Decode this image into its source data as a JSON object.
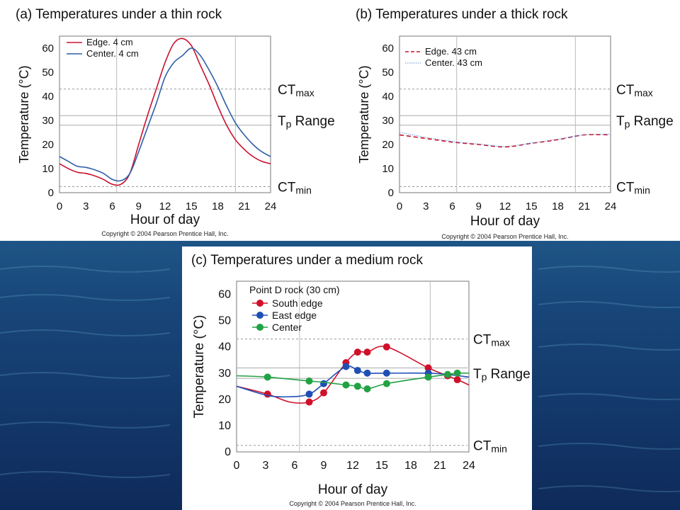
{
  "chart_data": [
    {
      "type": "line",
      "title": "(a)   Temperatures under a thin rock",
      "xlabel": "Hour of day",
      "ylabel": "Temperature (°C)",
      "xlim": [
        0,
        24
      ],
      "ylim": [
        0,
        65
      ],
      "xticks": [
        0,
        3,
        6,
        9,
        12,
        15,
        18,
        21,
        24
      ],
      "yticks": [
        0,
        10,
        20,
        30,
        40,
        50,
        60
      ],
      "vlines": [
        6.5,
        20
      ],
      "legend": "top-left",
      "series": [
        {
          "name": "Edge. 4 cm",
          "color": "#c8102e",
          "style": "solid",
          "x": [
            0,
            1,
            2,
            3,
            4,
            5,
            6,
            7,
            8,
            9,
            10,
            11,
            12,
            13,
            14,
            15,
            16,
            17,
            18,
            19,
            20,
            21,
            22,
            23,
            24
          ],
          "y": [
            12,
            10,
            8.5,
            8,
            7,
            5.5,
            3.5,
            3.5,
            8,
            20,
            32,
            43,
            54,
            62,
            64,
            61,
            53,
            45,
            36,
            28,
            22,
            18,
            15,
            13,
            12
          ]
        },
        {
          "name": "Center. 4 cm",
          "color": "#2e5fa8",
          "style": "solid",
          "x": [
            0,
            1,
            2,
            3,
            4,
            5,
            6,
            7,
            8,
            9,
            10,
            11,
            12,
            13,
            14,
            15,
            16,
            17,
            18,
            19,
            20,
            21,
            22,
            23,
            24
          ],
          "y": [
            15,
            13,
            11,
            10.5,
            9.5,
            8,
            5.5,
            5,
            8,
            17,
            27,
            37,
            48,
            54,
            57,
            60,
            57,
            51,
            44,
            36,
            29,
            24,
            20,
            17,
            15
          ]
        }
      ],
      "references": [
        {
          "label_main": "CT",
          "label_sub": "max",
          "value": 43,
          "style": "dashed"
        },
        {
          "label_main": "T",
          "label_sub": "p",
          "label_after": " Range",
          "value": 30,
          "band": [
            28,
            32
          ]
        },
        {
          "label_main": "CT",
          "label_sub": "min",
          "value": 2.5,
          "style": "dashed"
        }
      ],
      "copyright": "Copyright © 2004 Pearson Prentice Hall, Inc."
    },
    {
      "type": "line",
      "title": "(b)   Temperatures under a thick rock",
      "xlabel": "Hour of day",
      "ylabel": "Temperature (°C)",
      "xlim": [
        0,
        24
      ],
      "ylim": [
        0,
        65
      ],
      "xticks": [
        0,
        3,
        6,
        9,
        12,
        15,
        18,
        21,
        24
      ],
      "yticks": [
        0,
        10,
        20,
        30,
        40,
        50,
        60
      ],
      "vlines": [
        6.5,
        20
      ],
      "legend": "top-left",
      "series": [
        {
          "name": "Edge. 43 cm",
          "color": "#c8102e",
          "style": "dashed",
          "x": [
            0,
            3,
            6,
            9,
            12,
            15,
            18,
            21,
            24
          ],
          "y": [
            24,
            22.5,
            21,
            20,
            19,
            20.5,
            22,
            24,
            24
          ]
        },
        {
          "name": "Center. 43 cm",
          "color": "#6a8fc7",
          "style": "dotted",
          "x": [
            0,
            3,
            6,
            9,
            12,
            15,
            18,
            21,
            24
          ],
          "y": [
            25,
            23,
            21.3,
            20.2,
            19.2,
            20.6,
            22.2,
            24,
            24.3
          ]
        }
      ],
      "references": [
        {
          "label_main": "CT",
          "label_sub": "max",
          "value": 43,
          "style": "dashed"
        },
        {
          "label_main": "T",
          "label_sub": "p",
          "label_after": " Range",
          "value": 30,
          "band": [
            28,
            32
          ]
        },
        {
          "label_main": "CT",
          "label_sub": "min",
          "value": 2.5,
          "style": "dashed"
        }
      ],
      "copyright": "Copyright © 2004 Pearson Prentice Hall, Inc."
    },
    {
      "type": "line",
      "title": "(c)   Temperatures under a medium rock",
      "xlabel": "Hour of day",
      "ylabel": "Temperature (°C)",
      "xlim": [
        0,
        24
      ],
      "ylim": [
        0,
        65
      ],
      "xticks": [
        0,
        3,
        6,
        9,
        12,
        15,
        18,
        21,
        24
      ],
      "yticks": [
        0,
        10,
        20,
        30,
        40,
        50,
        60
      ],
      "vlines": [
        6.5,
        20
      ],
      "legend": "top-left",
      "legend_title": "Point D rock (30 cm)",
      "series": [
        {
          "name": "South edge",
          "color": "#d0102a",
          "style": "solid",
          "markers": true,
          "x": [
            0,
            3.2,
            5.5,
            7.5,
            9,
            11.3,
            12.5,
            13.5,
            15.5,
            19.8,
            21.8,
            22.8,
            24
          ],
          "y": [
            25,
            22,
            19,
            19,
            22.5,
            34,
            38,
            38,
            40,
            32,
            29,
            27.5,
            25.5
          ],
          "points": [
            [
              3.2,
              22
            ],
            [
              7.5,
              19
            ],
            [
              9,
              22.5
            ],
            [
              11.3,
              34
            ],
            [
              12.5,
              38
            ],
            [
              13.5,
              38
            ],
            [
              15.5,
              40
            ],
            [
              19.8,
              32
            ],
            [
              21.8,
              29
            ],
            [
              22.8,
              27.5
            ]
          ]
        },
        {
          "name": "East edge",
          "color": "#1f4fb5",
          "style": "solid",
          "markers": true,
          "x": [
            0,
            3.2,
            5.5,
            7.5,
            9,
            11.3,
            12.5,
            13.5,
            15.5,
            19.8,
            21.8,
            24
          ],
          "y": [
            25,
            21.5,
            21,
            22,
            26,
            32.5,
            31,
            30,
            30,
            30,
            29.5,
            28.5
          ],
          "points": [
            [
              7.5,
              22
            ],
            [
              9,
              26
            ],
            [
              11.3,
              32.5
            ],
            [
              12.5,
              31
            ],
            [
              13.5,
              30
            ],
            [
              15.5,
              30
            ],
            [
              19.8,
              30
            ]
          ]
        },
        {
          "name": "Center",
          "color": "#22a244",
          "style": "solid",
          "markers": true,
          "x": [
            0,
            3.2,
            7.5,
            9,
            11.3,
            12.5,
            13.5,
            15.5,
            19.8,
            21.8,
            22.8,
            24
          ],
          "y": [
            29,
            28.5,
            27,
            26.5,
            25.5,
            25,
            24,
            26,
            28.5,
            29.5,
            30,
            30
          ],
          "points": [
            [
              3.2,
              28.5
            ],
            [
              7.5,
              27
            ],
            [
              11.3,
              25.5
            ],
            [
              12.5,
              25
            ],
            [
              13.5,
              24
            ],
            [
              15.5,
              26
            ],
            [
              19.8,
              28.5
            ],
            [
              21.8,
              29.5
            ],
            [
              22.8,
              30
            ]
          ]
        }
      ],
      "references": [
        {
          "label_main": "CT",
          "label_sub": "max",
          "value": 43,
          "style": "dashed"
        },
        {
          "label_main": "T",
          "label_sub": "p",
          "label_after": " Range",
          "value": 30,
          "band": [
            28,
            32
          ]
        },
        {
          "label_main": "CT",
          "label_sub": "min",
          "value": 2.5,
          "style": "dashed"
        }
      ],
      "copyright": "Copyright © 2004 Pearson Prentice Hall, Inc."
    }
  ]
}
